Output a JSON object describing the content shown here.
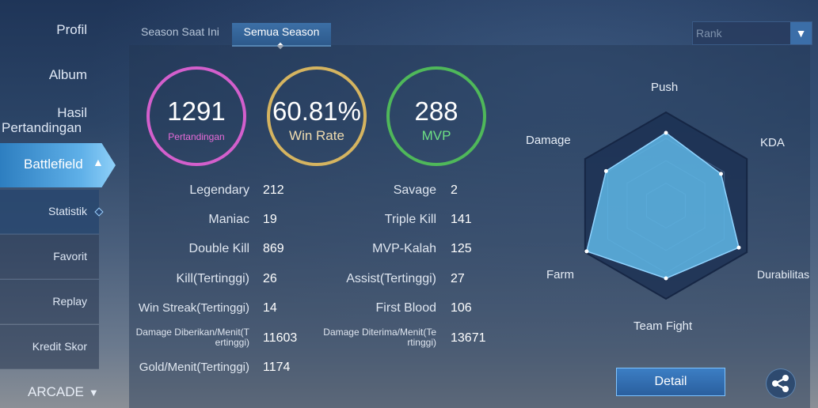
{
  "sidebar": {
    "profil": "Profil",
    "album": "Album",
    "hasil_line1": "Hasil",
    "hasil_line2": "Pertandingan",
    "battlefield": "Battlefield",
    "sub_items": [
      "Statistik",
      "Favorit",
      "Replay",
      "Kredit Skor"
    ],
    "arcade": "ARCADE"
  },
  "tabs": {
    "current_season": "Season Saat Ini",
    "all_seasons": "Semua Season"
  },
  "filter": {
    "selected": "Rank"
  },
  "summary": {
    "matches_value": "1291",
    "matches_label": "Pertandingan",
    "winrate_value": "60.81%",
    "winrate_label": "Win Rate",
    "mvp_value": "288",
    "mvp_label": "MVP"
  },
  "stats_left": [
    {
      "label": "Legendary",
      "value": "212"
    },
    {
      "label": "Maniac",
      "value": "19"
    },
    {
      "label": "Double Kill",
      "value": "869"
    },
    {
      "label": "Kill(Tertinggi)",
      "value": "26"
    },
    {
      "label": "Win Streak(Tertinggi)",
      "value": "14"
    },
    {
      "label_line1": "Damage Diberikan/Menit(T",
      "label_line2": "ertinggi)",
      "value": "11603"
    },
    {
      "label": "Gold/Menit(Tertinggi)",
      "value": "1174"
    }
  ],
  "stats_right": [
    {
      "label": "Savage",
      "value": "2"
    },
    {
      "label": "Triple Kill",
      "value": "141"
    },
    {
      "label": "MVP-Kalah",
      "value": "125"
    },
    {
      "label": "Assist(Tertinggi)",
      "value": "27"
    },
    {
      "label": "First Blood",
      "value": "106"
    },
    {
      "label_line1": "Damage Diterima/Menit(Te",
      "label_line2": "rtinggi)",
      "value": "13671"
    }
  ],
  "radar": {
    "axes": [
      "Push",
      "KDA",
      "Durabilitas",
      "Team Fight",
      "Farm",
      "Damage"
    ],
    "levels": [
      0.78,
      0.68,
      0.9,
      0.78,
      0.98,
      0.74
    ]
  },
  "actions": {
    "detail": "Detail"
  },
  "colors": {
    "matches_ring": "#d35fcc",
    "winrate_ring": "#d5b460",
    "mvp_ring": "#4fb85a",
    "radar_fill": "#5fb7e6",
    "accent": "#3b6ea8"
  },
  "icons": {
    "dropdown": "chevron-down-icon",
    "share": "share-icon",
    "expand": "chevron-up-icon"
  }
}
